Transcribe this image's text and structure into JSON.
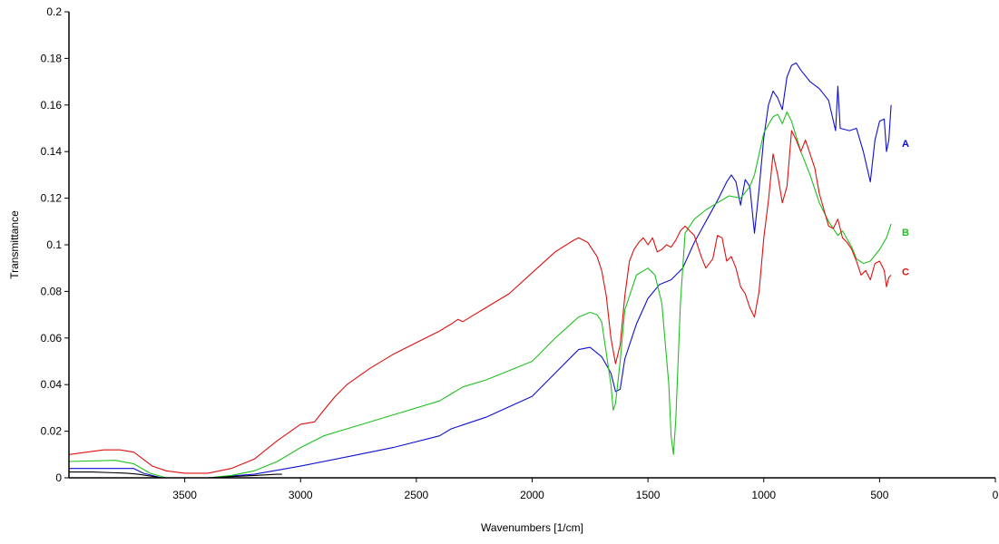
{
  "chart_data": {
    "type": "line",
    "title": "",
    "xlabel": "Wavenumbers [1/cm]",
    "ylabel": "Transmittance",
    "xlim": [
      4000,
      0
    ],
    "ylim": [
      0,
      0.2
    ],
    "x_ticks": [
      3500,
      3000,
      2500,
      2000,
      1500,
      1000,
      500,
      0
    ],
    "y_ticks": [
      0,
      0.02,
      0.04,
      0.06,
      0.08,
      0.1,
      0.12,
      0.14,
      0.16,
      0.18,
      0.2
    ],
    "grid": false,
    "series": [
      {
        "name": "A",
        "color": "#1010d0",
        "label_at": [
          435,
          0.1435
        ],
        "points": [
          [
            4000,
            0.004
          ],
          [
            3800,
            0.004
          ],
          [
            3720,
            0.004
          ],
          [
            3680,
            0.002
          ],
          [
            3600,
            0.0
          ],
          [
            3400,
            0.0
          ],
          [
            3200,
            0.0015
          ],
          [
            3000,
            0.005
          ],
          [
            2800,
            0.009
          ],
          [
            2600,
            0.013
          ],
          [
            2400,
            0.018
          ],
          [
            2350,
            0.021
          ],
          [
            2200,
            0.026
          ],
          [
            2000,
            0.035
          ],
          [
            1900,
            0.045
          ],
          [
            1800,
            0.055
          ],
          [
            1750,
            0.056
          ],
          [
            1700,
            0.052
          ],
          [
            1660,
            0.045
          ],
          [
            1640,
            0.037
          ],
          [
            1620,
            0.038
          ],
          [
            1600,
            0.051
          ],
          [
            1550,
            0.066
          ],
          [
            1500,
            0.077
          ],
          [
            1450,
            0.083
          ],
          [
            1400,
            0.085
          ],
          [
            1350,
            0.09
          ],
          [
            1300,
            0.101
          ],
          [
            1250,
            0.11
          ],
          [
            1200,
            0.119
          ],
          [
            1160,
            0.127
          ],
          [
            1140,
            0.13
          ],
          [
            1120,
            0.127
          ],
          [
            1100,
            0.117
          ],
          [
            1080,
            0.128
          ],
          [
            1060,
            0.125
          ],
          [
            1040,
            0.105
          ],
          [
            1020,
            0.124
          ],
          [
            1000,
            0.146
          ],
          [
            980,
            0.16
          ],
          [
            960,
            0.166
          ],
          [
            940,
            0.163
          ],
          [
            920,
            0.158
          ],
          [
            900,
            0.172
          ],
          [
            880,
            0.177
          ],
          [
            860,
            0.178
          ],
          [
            840,
            0.175
          ],
          [
            800,
            0.17
          ],
          [
            760,
            0.167
          ],
          [
            720,
            0.162
          ],
          [
            690,
            0.149
          ],
          [
            680,
            0.168
          ],
          [
            670,
            0.15
          ],
          [
            630,
            0.149
          ],
          [
            600,
            0.15
          ],
          [
            570,
            0.14
          ],
          [
            540,
            0.127
          ],
          [
            520,
            0.145
          ],
          [
            500,
            0.153
          ],
          [
            480,
            0.154
          ],
          [
            470,
            0.14
          ],
          [
            460,
            0.145
          ],
          [
            450,
            0.16
          ]
        ]
      },
      {
        "name": "B",
        "color": "#20c020",
        "label_at": [
          435,
          0.1055
        ],
        "points": [
          [
            4000,
            0.007
          ],
          [
            3800,
            0.0075
          ],
          [
            3720,
            0.006
          ],
          [
            3650,
            0.002
          ],
          [
            3580,
            0.0
          ],
          [
            3400,
            0.0
          ],
          [
            3300,
            0.001
          ],
          [
            3200,
            0.003
          ],
          [
            3100,
            0.007
          ],
          [
            3000,
            0.013
          ],
          [
            2900,
            0.018
          ],
          [
            2800,
            0.021
          ],
          [
            2600,
            0.027
          ],
          [
            2400,
            0.033
          ],
          [
            2350,
            0.036
          ],
          [
            2300,
            0.039
          ],
          [
            2200,
            0.042
          ],
          [
            2000,
            0.05
          ],
          [
            1900,
            0.06
          ],
          [
            1800,
            0.069
          ],
          [
            1750,
            0.071
          ],
          [
            1720,
            0.07
          ],
          [
            1700,
            0.067
          ],
          [
            1660,
            0.04
          ],
          [
            1650,
            0.029
          ],
          [
            1640,
            0.032
          ],
          [
            1620,
            0.05
          ],
          [
            1600,
            0.072
          ],
          [
            1550,
            0.087
          ],
          [
            1500,
            0.09
          ],
          [
            1470,
            0.087
          ],
          [
            1440,
            0.075
          ],
          [
            1410,
            0.04
          ],
          [
            1400,
            0.018
          ],
          [
            1390,
            0.01
          ],
          [
            1380,
            0.025
          ],
          [
            1360,
            0.075
          ],
          [
            1340,
            0.105
          ],
          [
            1300,
            0.111
          ],
          [
            1250,
            0.115
          ],
          [
            1200,
            0.118
          ],
          [
            1150,
            0.121
          ],
          [
            1100,
            0.12
          ],
          [
            1060,
            0.125
          ],
          [
            1040,
            0.13
          ],
          [
            1000,
            0.148
          ],
          [
            960,
            0.155
          ],
          [
            940,
            0.156
          ],
          [
            920,
            0.152
          ],
          [
            900,
            0.157
          ],
          [
            880,
            0.153
          ],
          [
            840,
            0.14
          ],
          [
            800,
            0.13
          ],
          [
            760,
            0.118
          ],
          [
            720,
            0.11
          ],
          [
            680,
            0.104
          ],
          [
            660,
            0.106
          ],
          [
            620,
            0.099
          ],
          [
            600,
            0.094
          ],
          [
            570,
            0.092
          ],
          [
            540,
            0.093
          ],
          [
            500,
            0.098
          ],
          [
            470,
            0.103
          ],
          [
            450,
            0.109
          ]
        ]
      },
      {
        "name": "C",
        "color": "#e01010",
        "label_at": [
          435,
          0.0885
        ],
        "points": [
          [
            4000,
            0.01
          ],
          [
            3850,
            0.012
          ],
          [
            3780,
            0.012
          ],
          [
            3720,
            0.011
          ],
          [
            3680,
            0.008
          ],
          [
            3640,
            0.005
          ],
          [
            3580,
            0.003
          ],
          [
            3500,
            0.002
          ],
          [
            3400,
            0.002
          ],
          [
            3300,
            0.004
          ],
          [
            3200,
            0.008
          ],
          [
            3100,
            0.016
          ],
          [
            3000,
            0.023
          ],
          [
            2940,
            0.024
          ],
          [
            2900,
            0.029
          ],
          [
            2850,
            0.035
          ],
          [
            2800,
            0.04
          ],
          [
            2700,
            0.047
          ],
          [
            2600,
            0.053
          ],
          [
            2500,
            0.058
          ],
          [
            2400,
            0.063
          ],
          [
            2350,
            0.066
          ],
          [
            2320,
            0.068
          ],
          [
            2300,
            0.067
          ],
          [
            2200,
            0.073
          ],
          [
            2100,
            0.079
          ],
          [
            2000,
            0.088
          ],
          [
            1900,
            0.097
          ],
          [
            1820,
            0.102
          ],
          [
            1800,
            0.103
          ],
          [
            1760,
            0.101
          ],
          [
            1720,
            0.095
          ],
          [
            1700,
            0.089
          ],
          [
            1680,
            0.078
          ],
          [
            1660,
            0.06
          ],
          [
            1640,
            0.049
          ],
          [
            1620,
            0.057
          ],
          [
            1600,
            0.078
          ],
          [
            1580,
            0.093
          ],
          [
            1560,
            0.098
          ],
          [
            1540,
            0.101
          ],
          [
            1520,
            0.103
          ],
          [
            1500,
            0.1
          ],
          [
            1480,
            0.103
          ],
          [
            1460,
            0.097
          ],
          [
            1440,
            0.098
          ],
          [
            1420,
            0.1
          ],
          [
            1400,
            0.099
          ],
          [
            1380,
            0.102
          ],
          [
            1360,
            0.106
          ],
          [
            1340,
            0.108
          ],
          [
            1300,
            0.104
          ],
          [
            1270,
            0.095
          ],
          [
            1250,
            0.09
          ],
          [
            1220,
            0.094
          ],
          [
            1200,
            0.104
          ],
          [
            1180,
            0.103
          ],
          [
            1160,
            0.093
          ],
          [
            1140,
            0.095
          ],
          [
            1120,
            0.09
          ],
          [
            1100,
            0.082
          ],
          [
            1080,
            0.079
          ],
          [
            1060,
            0.073
          ],
          [
            1040,
            0.069
          ],
          [
            1020,
            0.08
          ],
          [
            1000,
            0.103
          ],
          [
            980,
            0.119
          ],
          [
            960,
            0.139
          ],
          [
            940,
            0.13
          ],
          [
            920,
            0.118
          ],
          [
            900,
            0.125
          ],
          [
            880,
            0.149
          ],
          [
            860,
            0.145
          ],
          [
            840,
            0.14
          ],
          [
            820,
            0.145
          ],
          [
            800,
            0.139
          ],
          [
            780,
            0.133
          ],
          [
            760,
            0.122
          ],
          [
            740,
            0.115
          ],
          [
            720,
            0.108
          ],
          [
            700,
            0.107
          ],
          [
            680,
            0.111
          ],
          [
            660,
            0.103
          ],
          [
            640,
            0.101
          ],
          [
            620,
            0.098
          ],
          [
            600,
            0.093
          ],
          [
            580,
            0.087
          ],
          [
            560,
            0.089
          ],
          [
            540,
            0.085
          ],
          [
            520,
            0.092
          ],
          [
            500,
            0.093
          ],
          [
            480,
            0.089
          ],
          [
            470,
            0.082
          ],
          [
            460,
            0.086
          ],
          [
            450,
            0.087
          ]
        ]
      },
      {
        "name": "",
        "color": "#000000",
        "points": [
          [
            4000,
            0.0025
          ],
          [
            3900,
            0.0025
          ],
          [
            3750,
            0.002
          ],
          [
            3700,
            0.0015
          ],
          [
            3600,
            0.0
          ],
          [
            3500,
            0.0
          ],
          [
            3400,
            0.0
          ],
          [
            3300,
            0.0005
          ],
          [
            3200,
            0.001
          ],
          [
            3100,
            0.0015
          ],
          [
            3080,
            0.0015
          ]
        ]
      }
    ]
  }
}
